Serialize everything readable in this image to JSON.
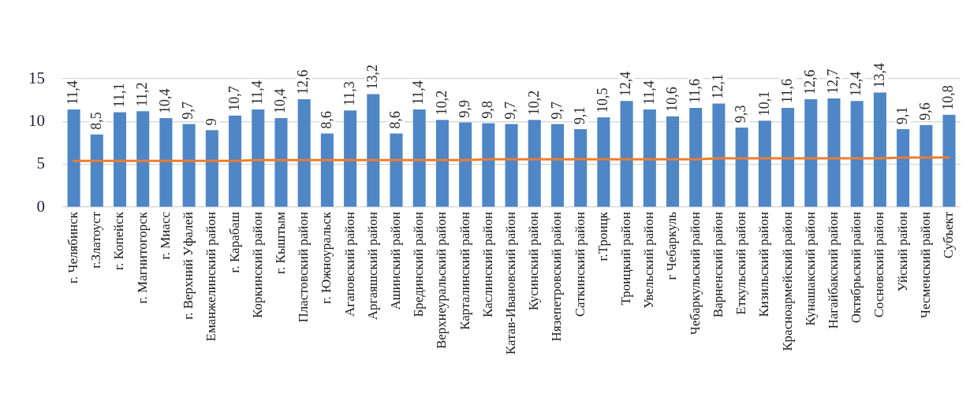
{
  "chart_data": {
    "type": "bar",
    "categories": [
      "г. Челябинск",
      "г.Златоуст",
      "г. Копейск",
      "г. Магнитогорск",
      "г. Миасс",
      "г. Верхний Уфалей",
      "Еманжелинский район",
      "г. Карабаш",
      "Коркинский район",
      "г. Кыштым",
      "Пластовский район",
      "г. Южноуральск",
      "Агаповский район",
      "Аргаяшский район",
      "Ашинский район",
      "Брединский район",
      "Верхнеуральский район",
      "Карталинский район",
      "Каслинский район",
      "Катав-Ивановский район",
      "Кусинский район",
      "Нязепетровский район",
      "Саткинский район",
      "г.Троицк",
      "Троицкий район",
      "Увельский район",
      "г Чебаркуль",
      "Чебаркульский район",
      "Варненский район",
      "Еткульский район",
      "Кизильский район",
      "Красноармейский район",
      "Кунашакский район",
      "Нагайбакский район",
      "Октябрьский район",
      "Сосновский район",
      "Уйский район",
      "Чесменский район",
      "Субъект"
    ],
    "series": [
      {
        "color": "#4f86c6",
        "values": [
          11.4,
          8.5,
          11.1,
          11.2,
          10.4,
          9.7,
          9,
          10.7,
          11.4,
          10.4,
          12.6,
          8.6,
          11.3,
          13.2,
          8.6,
          11.4,
          10.2,
          9.9,
          9.8,
          9.7,
          10.2,
          9.7,
          9.1,
          10.5,
          12.4,
          11.4,
          10.6,
          11.6,
          12.1,
          9.3,
          10.1,
          11.6,
          12.6,
          12.7,
          12.4,
          13.4,
          9.1,
          9.6,
          10.8
        ],
        "value_labels": [
          "11,4",
          "8,5",
          "11,1",
          "11,2",
          "10,4",
          "9,7",
          "9",
          "10,7",
          "11,4",
          "10,4",
          "12,6",
          "8,6",
          "11,3",
          "13,2",
          "8,6",
          "11,4",
          "10,2",
          "9,9",
          "9,8",
          "9,7",
          "10,2",
          "9,7",
          "9,1",
          "10,5",
          "12,4",
          "11,4",
          "10,6",
          "11,6",
          "12,1",
          "9,3",
          "10,1",
          "11,6",
          "12,6",
          "12,7",
          "12,4",
          "13,4",
          "9,1",
          "9,6",
          "10,8"
        ]
      },
      {
        "type": "line",
        "color": "#ed7d31",
        "marker": "none",
        "values": [
          5.4,
          5.4,
          5.4,
          5.4,
          5.4,
          5.4,
          5.4,
          5.4,
          5.5,
          5.5,
          5.5,
          5.5,
          5.5,
          5.5,
          5.5,
          5.5,
          5.5,
          5.5,
          5.6,
          5.6,
          5.6,
          5.6,
          5.6,
          5.6,
          5.6,
          5.6,
          5.6,
          5.6,
          5.7,
          5.7,
          5.7,
          5.7,
          5.7,
          5.7,
          5.7,
          5.7,
          5.8,
          5.8,
          5.8
        ]
      }
    ],
    "ylim": [
      0,
      15
    ],
    "yticks": [
      0,
      5,
      10,
      15
    ],
    "grid": "y"
  }
}
